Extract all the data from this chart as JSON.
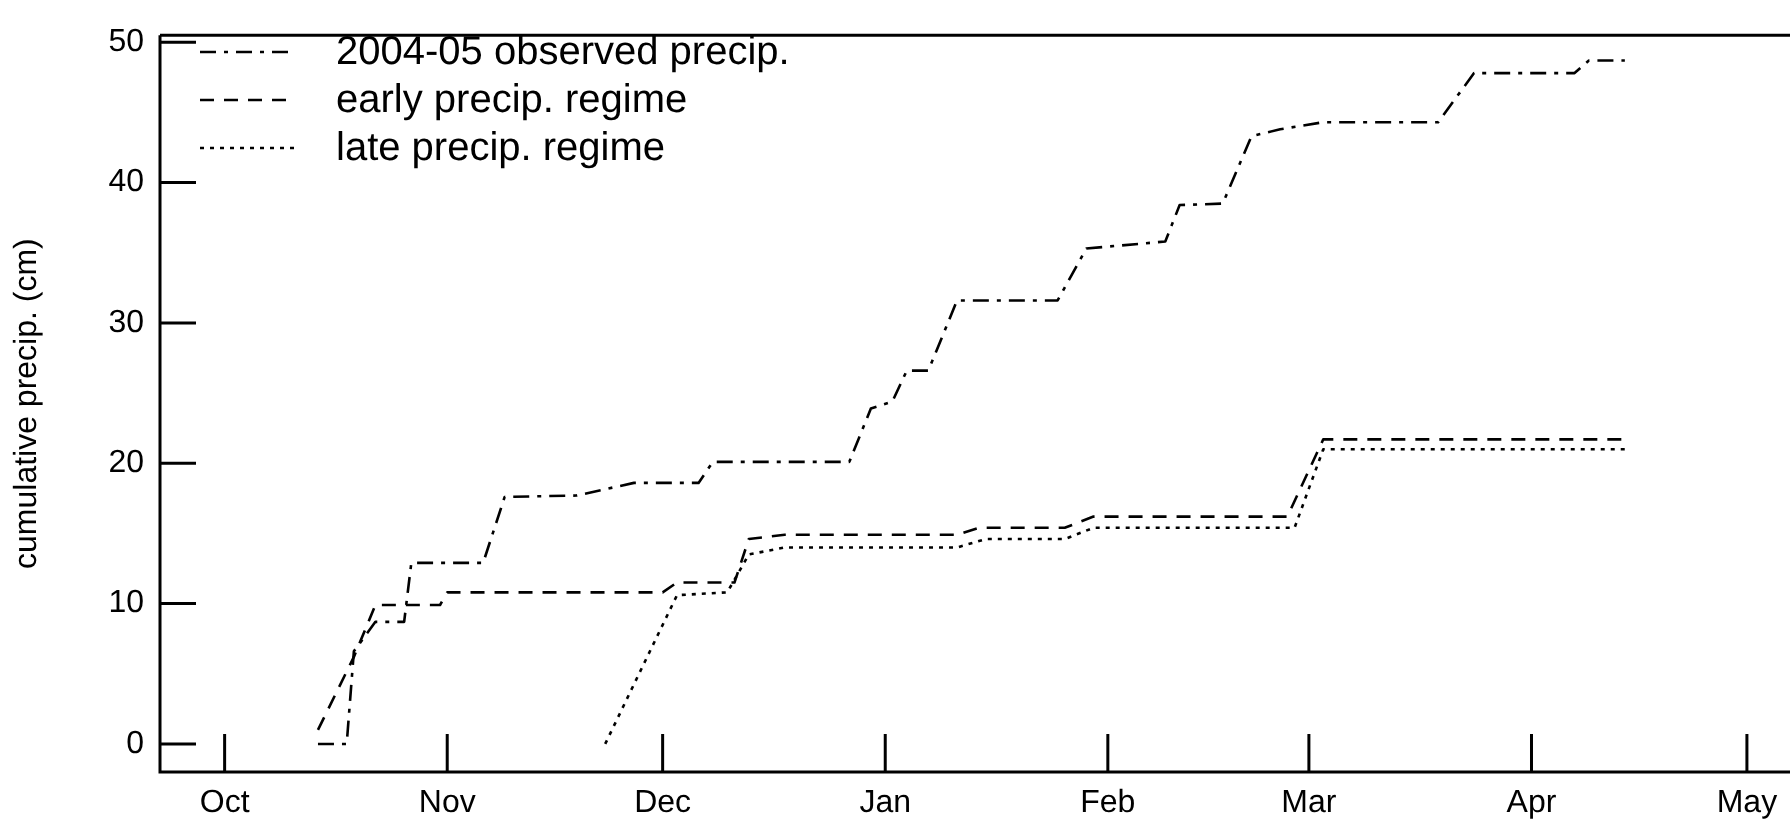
{
  "chart_data": {
    "type": "line",
    "ylabel": "cumulative precip. (cm)",
    "xlim": [
      "2004-09-22",
      "2005-05-07"
    ],
    "xticks": [
      {
        "value": "2004-10-01",
        "label": "Oct"
      },
      {
        "value": "2004-11-01",
        "label": "Nov"
      },
      {
        "value": "2004-12-01",
        "label": "Dec"
      },
      {
        "value": "2005-01-01",
        "label": "Jan"
      },
      {
        "value": "2005-02-01",
        "label": "Feb"
      },
      {
        "value": "2005-03-01",
        "label": "Mar"
      },
      {
        "value": "2005-04-01",
        "label": "Apr"
      },
      {
        "value": "2005-05-01",
        "label": "May"
      }
    ],
    "ylim": [
      -2,
      50.5
    ],
    "yticks": [
      0,
      10,
      20,
      30,
      40,
      50
    ],
    "grid": false,
    "legend": "top left",
    "marker": "none",
    "series": [
      {
        "name": "2004-05 observed precip.",
        "color": "#000000",
        "line_style": "dashdot",
        "x": [
          "2004-10-14",
          "2004-10-18",
          "2004-10-19",
          "2004-10-22",
          "2004-10-26",
          "2004-10-27",
          "2004-11-06",
          "2004-11-09",
          "2004-11-19",
          "2004-11-27",
          "2004-12-06",
          "2004-12-08",
          "2004-12-27",
          "2004-12-30",
          "2005-01-02",
          "2005-01-04",
          "2005-01-07",
          "2005-01-11",
          "2005-01-25",
          "2005-01-29",
          "2005-02-09",
          "2005-02-11",
          "2005-02-17",
          "2005-02-21",
          "2005-02-25",
          "2005-03-03",
          "2005-03-19",
          "2005-03-24",
          "2005-04-07",
          "2005-04-09",
          "2005-04-14"
        ],
        "values": [
          0,
          0,
          6.6,
          8.7,
          8.7,
          12.9,
          12.9,
          17.6,
          17.7,
          18.6,
          18.6,
          20.1,
          20.1,
          23.9,
          24.4,
          26.6,
          26.6,
          31.6,
          31.6,
          35.3,
          35.8,
          38.4,
          38.5,
          43.3,
          43.8,
          44.3,
          44.3,
          47.8,
          47.8,
          48.7,
          48.7
        ]
      },
      {
        "name": "early precip. regime",
        "color": "#000000",
        "line_style": "dashed",
        "x": [
          "2004-10-14",
          "2004-10-19",
          "2004-10-22",
          "2004-10-31",
          "2004-11-01",
          "2004-12-01",
          "2004-12-03",
          "2004-12-11",
          "2004-12-13",
          "2004-12-18",
          "2005-01-11",
          "2005-01-14",
          "2005-01-26",
          "2005-01-30",
          "2005-02-26",
          "2005-03-03",
          "2005-04-14"
        ],
        "values": [
          1.0,
          6.2,
          9.9,
          9.9,
          10.8,
          10.8,
          11.5,
          11.5,
          14.6,
          14.9,
          14.9,
          15.4,
          15.4,
          16.2,
          16.2,
          21.7,
          21.7
        ]
      },
      {
        "name": "late precip. regime",
        "color": "#000000",
        "line_style": "dotted",
        "x": [
          "2004-11-23",
          "2004-12-03",
          "2004-12-10",
          "2004-12-13",
          "2004-12-18",
          "2005-01-11",
          "2005-01-15",
          "2005-01-26",
          "2005-01-30",
          "2005-02-27",
          "2005-03-03",
          "2005-04-14"
        ],
        "values": [
          0,
          10.6,
          10.8,
          13.5,
          14.0,
          14.0,
          14.6,
          14.6,
          15.4,
          15.4,
          21.0,
          21.0
        ]
      }
    ]
  }
}
